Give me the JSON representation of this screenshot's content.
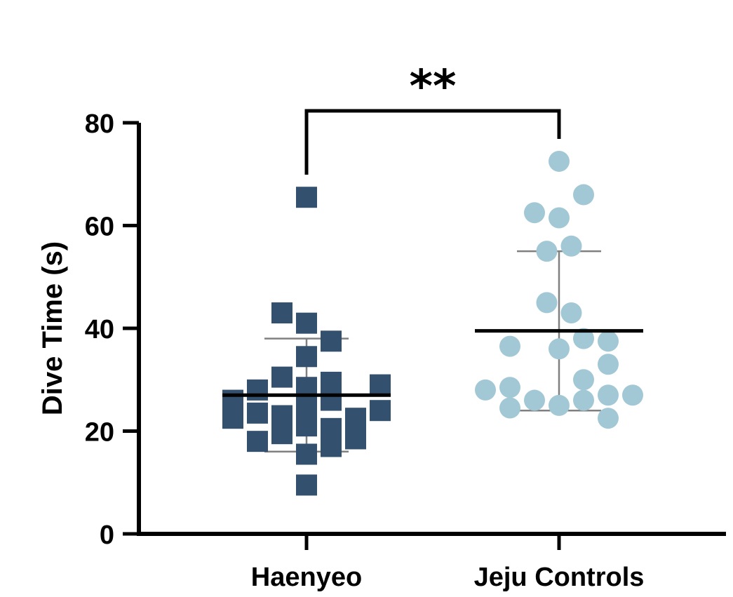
{
  "chart_data": {
    "type": "scatter",
    "title": "",
    "xlabel": "",
    "ylabel": "Dive Time (s)",
    "ylim": [
      0,
      80
    ],
    "yticks": [
      0,
      20,
      40,
      60,
      80
    ],
    "categories": [
      "Haenyeo",
      "Jeju Controls"
    ],
    "series": [
      {
        "name": "Haenyeo",
        "marker": "square",
        "color": "#34506f",
        "mean": 27,
        "sd_upper": 38,
        "sd_lower": 16,
        "points": [
          {
            "offset": 0.0,
            "y": 65.5
          },
          {
            "offset": -0.1,
            "y": 43
          },
          {
            "offset": 0.0,
            "y": 41
          },
          {
            "offset": 0.1,
            "y": 37.5
          },
          {
            "offset": 0.0,
            "y": 34.5
          },
          {
            "offset": -0.1,
            "y": 30.5
          },
          {
            "offset": 0.1,
            "y": 29.5
          },
          {
            "offset": 0.0,
            "y": 28.5
          },
          {
            "offset": 0.3,
            "y": 29
          },
          {
            "offset": -0.2,
            "y": 28
          },
          {
            "offset": -0.3,
            "y": 26
          },
          {
            "offset": 0.1,
            "y": 26
          },
          {
            "offset": 0.0,
            "y": 25
          },
          {
            "offset": 0.3,
            "y": 24
          },
          {
            "offset": -0.2,
            "y": 23.5
          },
          {
            "offset": -0.1,
            "y": 23
          },
          {
            "offset": 0.2,
            "y": 22.5
          },
          {
            "offset": -0.3,
            "y": 22.5
          },
          {
            "offset": 0.0,
            "y": 21
          },
          {
            "offset": 0.1,
            "y": 20.5
          },
          {
            "offset": -0.1,
            "y": 19.5
          },
          {
            "offset": 0.2,
            "y": 18.5
          },
          {
            "offset": -0.2,
            "y": 18
          },
          {
            "offset": 0.1,
            "y": 17
          },
          {
            "offset": 0.0,
            "y": 15.5
          },
          {
            "offset": 0.0,
            "y": 9.5
          }
        ]
      },
      {
        "name": "Jeju Controls",
        "marker": "circle",
        "color": "#a2c8d6",
        "mean": 39.5,
        "sd_upper": 55,
        "sd_lower": 24,
        "points": [
          {
            "offset": 0.0,
            "y": 72.5
          },
          {
            "offset": 0.1,
            "y": 66
          },
          {
            "offset": -0.1,
            "y": 62.5
          },
          {
            "offset": 0.0,
            "y": 61.5
          },
          {
            "offset": 0.05,
            "y": 56
          },
          {
            "offset": -0.05,
            "y": 55
          },
          {
            "offset": -0.05,
            "y": 45
          },
          {
            "offset": 0.05,
            "y": 43
          },
          {
            "offset": 0.1,
            "y": 38
          },
          {
            "offset": 0.2,
            "y": 37.5
          },
          {
            "offset": -0.2,
            "y": 36.5
          },
          {
            "offset": 0.0,
            "y": 36
          },
          {
            "offset": 0.2,
            "y": 33
          },
          {
            "offset": 0.1,
            "y": 30
          },
          {
            "offset": -0.3,
            "y": 28
          },
          {
            "offset": -0.2,
            "y": 28.5
          },
          {
            "offset": 0.2,
            "y": 27
          },
          {
            "offset": 0.3,
            "y": 27
          },
          {
            "offset": -0.1,
            "y": 26
          },
          {
            "offset": 0.1,
            "y": 26
          },
          {
            "offset": 0.0,
            "y": 25
          },
          {
            "offset": -0.2,
            "y": 24.5
          },
          {
            "offset": 0.2,
            "y": 22.5
          }
        ]
      }
    ],
    "annotations": [
      {
        "text": "**",
        "between": [
          "Haenyeo",
          "Jeju Controls"
        ],
        "bracket_y_data": 82
      }
    ]
  }
}
